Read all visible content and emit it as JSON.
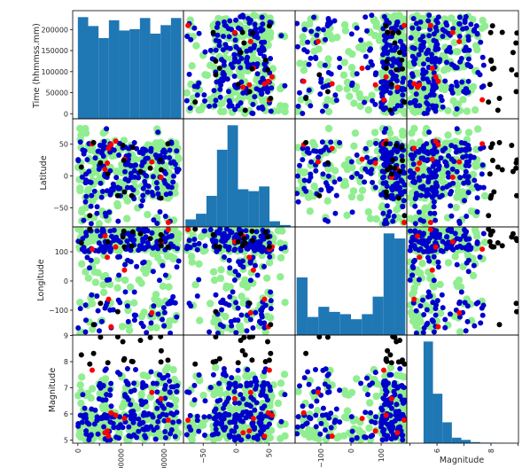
{
  "chart_data": {
    "type": "scatter_matrix",
    "variables": [
      "Time (hhmmss.mm)",
      "Latitude",
      "Longitude",
      "Magnitude"
    ],
    "ranges": [
      [
        -12000,
        245000
      ],
      [
        -80,
        90
      ],
      [
        -185,
        185
      ],
      [
        4.88,
        9.02
      ]
    ],
    "ticks": [
      [
        0,
        50000,
        100000,
        150000,
        200000
      ],
      [
        -50,
        0,
        50
      ],
      [
        -100,
        0,
        100
      ],
      [
        5,
        6,
        7,
        8,
        9
      ]
    ],
    "tick_labels": [
      [
        "0",
        "50000",
        "100000",
        "150000",
        "200000"
      ],
      [
        "−50",
        "0",
        "50"
      ],
      [
        "−100",
        "0",
        "100"
      ],
      [
        "5",
        "6",
        "7",
        "8",
        "9"
      ]
    ],
    "visible_x_tick_labels": [
      [
        "0",
        "00000",
        "00000"
      ],
      [
        "−50",
        "0",
        "50"
      ],
      [
        "−100",
        "0",
        "100"
      ],
      [
        "6",
        "8"
      ]
    ],
    "point_colors": {
      "background": "#90ee90",
      "secondary": "#0000cd",
      "tertiary": "#ff0000",
      "magnitude_high": "#000000"
    },
    "histograms": [
      {
        "variable": "Time (hhmmss.mm)",
        "bins": [
          0,
          24000,
          48000,
          72000,
          96000,
          120000,
          144000,
          168000,
          192000,
          216000,
          240000
        ],
        "counts": [
          228,
          208,
          181,
          221,
          198,
          201,
          226,
          191,
          210,
          226
        ]
      },
      {
        "variable": "Latitude",
        "bins": [
          -77,
          -61,
          -45,
          -29,
          -13,
          3,
          19,
          35,
          51,
          67,
          83
        ],
        "counts": [
          8,
          14,
          33,
          82,
          108,
          40,
          38,
          43,
          6,
          2
        ]
      },
      {
        "variable": "Longitude",
        "bins": [
          -180,
          -144,
          -108,
          -72,
          -36,
          0,
          36,
          72,
          108,
          144,
          180
        ],
        "counts": [
          102,
          32,
          50,
          41,
          37,
          28,
          37,
          68,
          180,
          171
        ]
      },
      {
        "variable": "Magnitude",
        "bins": [
          5.5,
          5.85,
          6.2,
          6.55,
          6.9,
          7.25,
          7.6,
          7.95,
          8.3,
          8.65,
          9.0
        ],
        "counts": [
          185,
          90,
          38,
          10,
          6,
          2,
          1,
          0.8,
          0.5,
          0.3
        ]
      }
    ],
    "bar_color": "#1f77b4"
  }
}
